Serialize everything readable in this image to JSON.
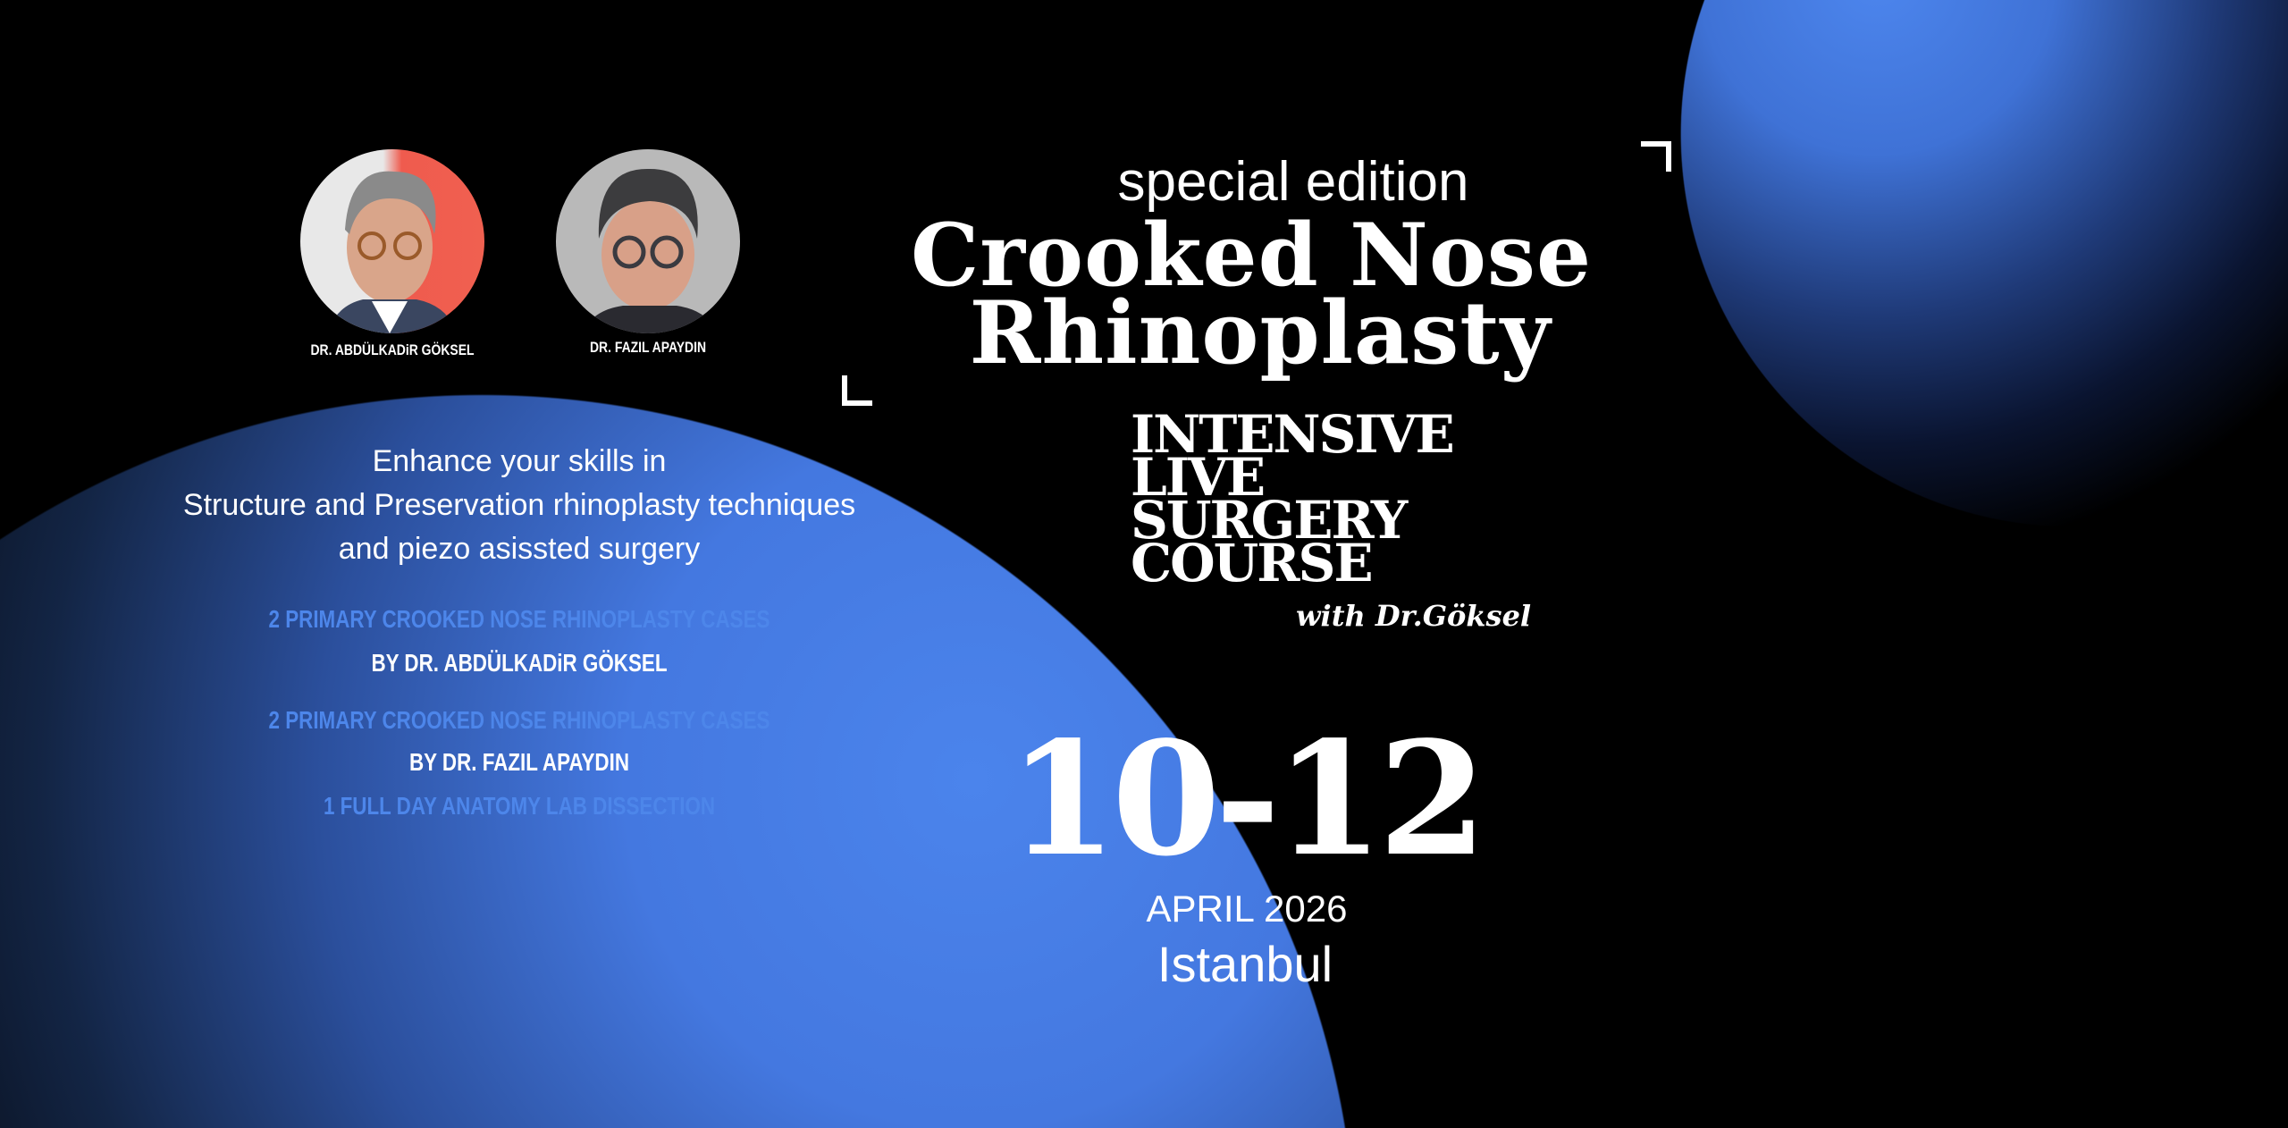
{
  "colors": {
    "background": "#000000",
    "accent_blue": "#4d86ea",
    "text": "#ffffff"
  },
  "speakers": [
    {
      "name": "DR.  ABDÜLKADiR GÖKSEL",
      "photo_bg": "#ef5b4e"
    },
    {
      "name": "DR.  FAZIL APAYDIN",
      "photo_bg": "#b9b9b9"
    }
  ],
  "intro": {
    "line1": "Enhance your skills in",
    "line2": "Structure and Preservation rhinoplasty techniques",
    "line3": "and piezo asissted surgery"
  },
  "highlights": [
    {
      "text": "2 PRIMARY CROOKED NOSE RHINOPLASTY CASES",
      "color": "blue"
    },
    {
      "text": "BY DR. ABDÜLKADiR GÖKSEL",
      "color": "white"
    },
    {
      "text": "2 PRIMARY CROOKED NOSE RHINOPLASTY CASES",
      "color": "blue"
    },
    {
      "text": "BY DR. FAZIL APAYDIN",
      "color": "white"
    },
    {
      "text": "1 FULL DAY ANATOMY LAB DISSECTION",
      "color": "blue"
    }
  ],
  "title": {
    "kicker": "special edition",
    "line1": "Crooked Nose",
    "line2": "Rhinoplasty"
  },
  "course": {
    "lines": [
      "INTENSIVE",
      "LIVE",
      "SURGERY",
      "COURSE"
    ],
    "signature": "with Dr.Göksel"
  },
  "event": {
    "dates": "10-12",
    "month_year": "APRIL 2026",
    "city": "Istanbul"
  }
}
